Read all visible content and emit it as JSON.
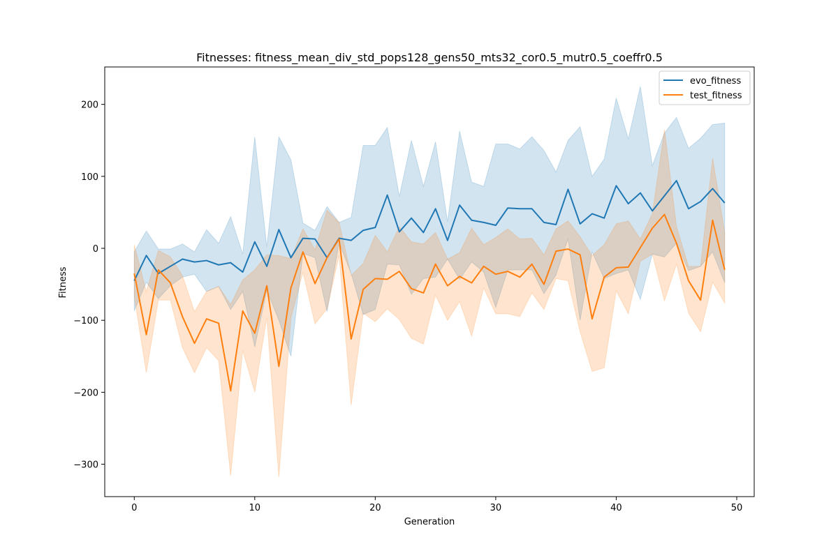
{
  "chart_data": {
    "type": "line",
    "title": "Fitnesses: fitness_mean_div_std_pops128_gens50_mts32_cor0.5_mutr0.5_coeffr0.5",
    "xlabel": "Generation",
    "ylabel": "Fitness",
    "xlim": [
      -2.45,
      51.45
    ],
    "ylim": [
      -345,
      252
    ],
    "xticks": [
      0,
      10,
      20,
      30,
      40,
      50
    ],
    "yticks": [
      -300,
      -200,
      -100,
      0,
      100,
      200
    ],
    "grid": false,
    "legend_position": "top-right",
    "x": [
      0,
      1,
      2,
      3,
      4,
      5,
      6,
      7,
      8,
      9,
      10,
      11,
      12,
      13,
      14,
      15,
      16,
      17,
      18,
      19,
      20,
      21,
      22,
      23,
      24,
      25,
      26,
      27,
      28,
      29,
      30,
      31,
      32,
      33,
      34,
      35,
      36,
      37,
      38,
      39,
      40,
      41,
      42,
      43,
      44,
      45,
      46,
      47,
      48,
      49
    ],
    "series": [
      {
        "name": "evo_fitness",
        "color": "#1f77b4",
        "values": [
          -45,
          -10,
          -35,
          -25,
          -15,
          -19,
          -17,
          -23,
          -20,
          -33,
          9,
          -25,
          26,
          -13,
          14,
          13,
          -13,
          14,
          11,
          25,
          29,
          74,
          23,
          42,
          22,
          55,
          11,
          60,
          39,
          36,
          32,
          56,
          55,
          55,
          36,
          33,
          82,
          34,
          48,
          42,
          87,
          62,
          77,
          52,
          73,
          94,
          55,
          65,
          83,
          63
        ],
        "upper": [
          -5,
          24,
          -1,
          -1,
          6,
          -5,
          26,
          7,
          44,
          -8,
          155,
          2,
          155,
          123,
          35,
          25,
          58,
          36,
          43,
          143,
          143,
          168,
          72,
          150,
          86,
          148,
          37,
          163,
          92,
          86,
          145,
          145,
          138,
          155,
          136,
          106,
          150,
          169,
          100,
          124,
          209,
          152,
          225,
          115,
          160,
          182,
          139,
          153,
          172,
          174
        ],
        "lower": [
          -87,
          -47,
          -70,
          -52,
          -40,
          -36,
          -60,
          -53,
          -85,
          -60,
          -137,
          -58,
          -100,
          -150,
          -7,
          -13,
          -88,
          8,
          -35,
          -92,
          -85,
          -22,
          -23,
          -64,
          -42,
          -40,
          -15,
          -43,
          -19,
          -33,
          -82,
          -30,
          -30,
          -30,
          -63,
          -37,
          13,
          -100,
          -5,
          -42,
          -35,
          -30,
          -71,
          -8,
          -12,
          7,
          -31,
          -25,
          -5,
          -48
        ]
      },
      {
        "name": "test_fitness",
        "color": "#ff7f0e",
        "values": [
          -35,
          -120,
          -30,
          -48,
          -95,
          -132,
          -98,
          -104,
          -198,
          -87,
          -118,
          -52,
          -164,
          -55,
          -5,
          -49,
          -13,
          13,
          -126,
          -57,
          -42,
          -43,
          -32,
          -56,
          -62,
          -22,
          -52,
          -39,
          -48,
          -25,
          -36,
          -32,
          -40,
          -22,
          -50,
          -4,
          -1,
          -9,
          -98,
          -40,
          -27,
          -26,
          1,
          28,
          47,
          7,
          -45,
          -72,
          39,
          -30
        ],
        "upper": [
          5,
          -60,
          -3,
          -12,
          -38,
          -88,
          -60,
          -53,
          -78,
          -44,
          -30,
          -9,
          -10,
          -14,
          27,
          -2,
          53,
          36,
          -38,
          -21,
          18,
          -5,
          30,
          9,
          6,
          22,
          -15,
          -6,
          28,
          5,
          15,
          27,
          13,
          14,
          -9,
          27,
          38,
          16,
          -10,
          5,
          34,
          38,
          13,
          48,
          165,
          30,
          -25,
          -25,
          125,
          22
        ],
        "lower": [
          -67,
          -173,
          -72,
          -72,
          -138,
          -173,
          -138,
          -156,
          -316,
          -142,
          -200,
          -96,
          -318,
          -97,
          -33,
          -105,
          -84,
          -10,
          -218,
          -90,
          -102,
          -84,
          -99,
          -125,
          -133,
          -65,
          -100,
          -74,
          -122,
          -55,
          -91,
          -91,
          -95,
          -62,
          -85,
          -42,
          -45,
          -116,
          -171,
          -166,
          -59,
          -91,
          -18,
          -8,
          -73,
          -22,
          -90,
          -116,
          -47,
          -76
        ]
      }
    ]
  }
}
